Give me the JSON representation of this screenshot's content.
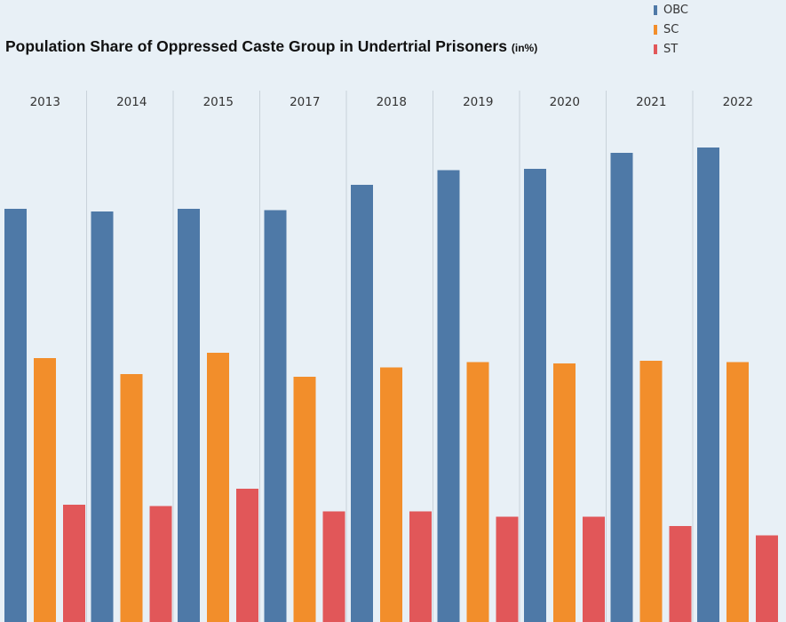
{
  "title": "Population Share of Oppressed Caste Group in Undertrial Prisoners",
  "title_unit": "(in%)",
  "chart_data": {
    "type": "bar",
    "title": "Population Share of Oppressed Caste Group in Undertrial Prisoners (in%)",
    "categories": [
      "2013",
      "2014",
      "2015",
      "2017",
      "2018",
      "2019",
      "2020",
      "2021",
      "2022"
    ],
    "series": [
      {
        "name": "OBC",
        "color": "#4e79a7",
        "values": [
          31.0,
          30.8,
          31.0,
          30.9,
          32.8,
          33.9,
          34.0,
          35.2,
          35.6
        ]
      },
      {
        "name": "SC",
        "color": "#f28e2b",
        "values": [
          19.8,
          18.6,
          20.2,
          18.4,
          19.1,
          19.5,
          19.4,
          19.6,
          19.5
        ]
      },
      {
        "name": "ST",
        "color": "#e15759",
        "values": [
          8.8,
          8.7,
          10.0,
          8.3,
          8.3,
          7.9,
          7.9,
          7.2,
          6.5
        ]
      }
    ],
    "ylim": [
      0,
      40
    ],
    "grid": false,
    "legend": "top-right"
  }
}
